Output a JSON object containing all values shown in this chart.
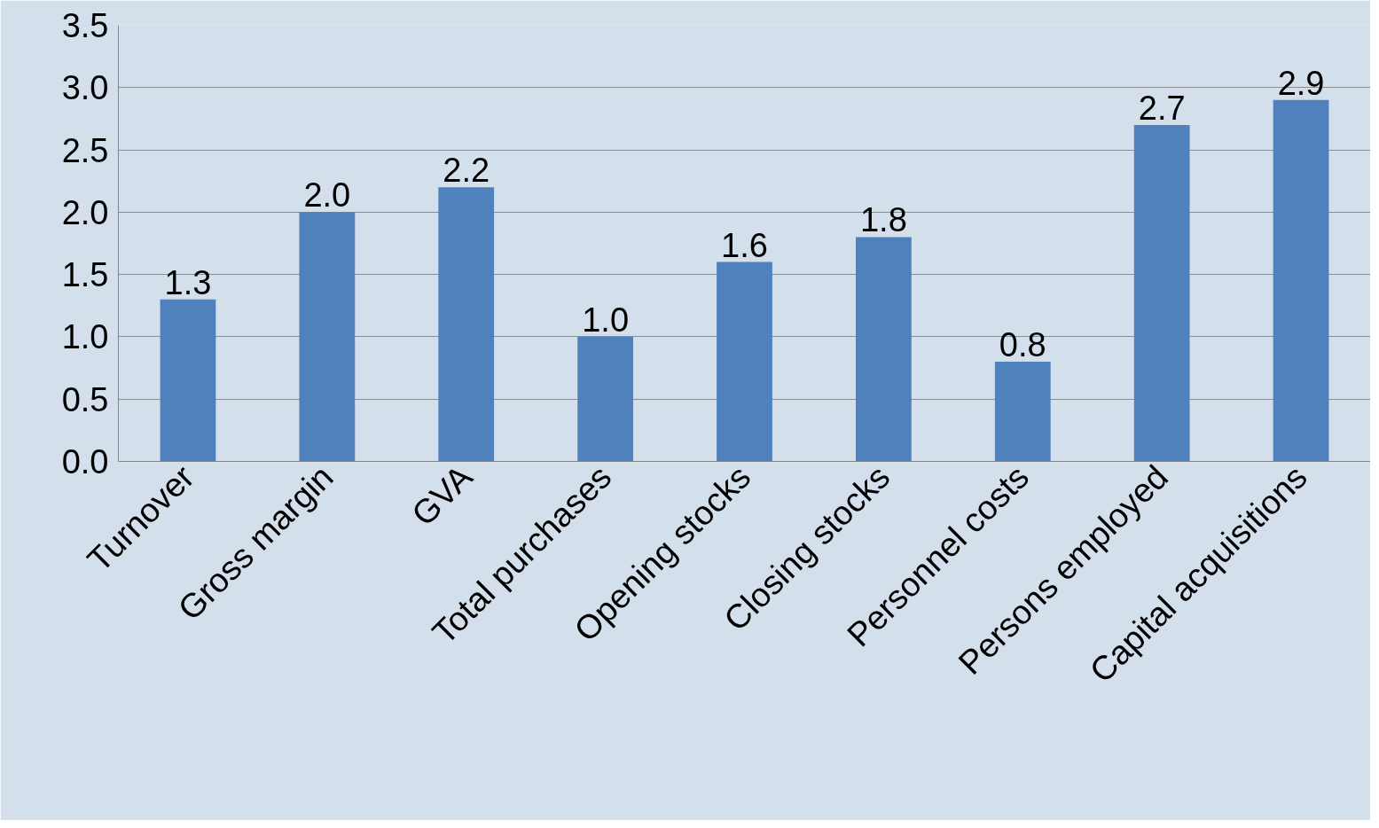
{
  "chart_data": {
    "type": "bar",
    "categories": [
      "Turnover",
      "Gross margin",
      "GVA",
      "Total purchases",
      "Opening stocks",
      "Closing stocks",
      "Personnel costs",
      "Persons employed",
      "Capital acquisitions"
    ],
    "values": [
      1.3,
      2.0,
      2.2,
      1.0,
      1.6,
      1.8,
      0.8,
      2.7,
      2.9
    ],
    "color": "#4f81bd",
    "ylim": [
      0,
      3.5
    ],
    "yticks": [
      {
        "value": 0,
        "label": "0.0"
      },
      {
        "value": 0.5,
        "label": "0.5"
      },
      {
        "value": 1,
        "label": "1.0"
      },
      {
        "value": 1.5,
        "label": "1.5"
      },
      {
        "value": 2,
        "label": "2.0"
      },
      {
        "value": 2.5,
        "label": "2.5"
      },
      {
        "value": 3,
        "label": "3.0"
      },
      {
        "value": 3.5,
        "label": "3.5"
      }
    ],
    "grid": "y",
    "value_labels": [
      "1.3",
      "2.0",
      "2.2",
      "1.0",
      "1.6",
      "1.8",
      "0.8",
      "2.7",
      "2.9"
    ]
  }
}
